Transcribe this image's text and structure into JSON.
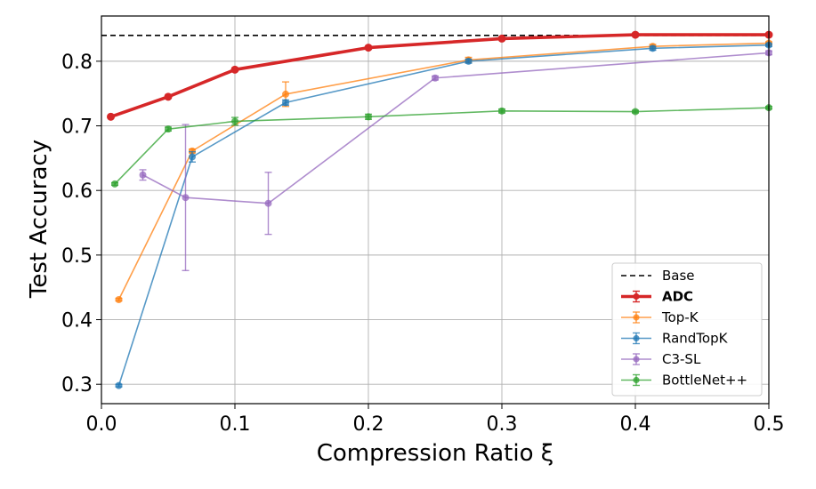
{
  "chart_data": {
    "type": "line",
    "title": "",
    "xlabel": "Compression Ratio ξ",
    "ylabel": "Test Accuracy",
    "xlim": [
      0.0,
      0.5
    ],
    "ylim": [
      0.27,
      0.87
    ],
    "xticks": [
      0.0,
      0.1,
      0.2,
      0.3,
      0.4,
      0.5
    ],
    "xtick_labels": [
      "0.0",
      "0.1",
      "0.2",
      "0.3",
      "0.4",
      "0.5"
    ],
    "yticks": [
      0.3,
      0.4,
      0.5,
      0.6,
      0.7,
      0.8
    ],
    "ytick_labels": [
      "0.3",
      "0.4",
      "0.5",
      "0.6",
      "0.7",
      "0.8"
    ],
    "grid": true,
    "legend_position": "lower-right",
    "baseline": {
      "name": "Base",
      "y": 0.84,
      "color": "#000000",
      "style": "dashed"
    },
    "series": [
      {
        "name": "ADC",
        "color": "#d62728",
        "bold": true,
        "x": [
          0.007,
          0.05,
          0.1,
          0.2,
          0.3,
          0.4,
          0.5
        ],
        "y": [
          0.714,
          0.745,
          0.787,
          0.821,
          0.835,
          0.841,
          0.841
        ],
        "err": [
          0.002,
          0.002,
          0.002,
          0.002,
          0.002,
          0.002,
          0.002
        ]
      },
      {
        "name": "Top-K",
        "color": "#ff7f0e",
        "bold": false,
        "x": [
          0.013,
          0.068,
          0.138,
          0.275,
          0.413,
          0.5
        ],
        "y": [
          0.431,
          0.661,
          0.749,
          0.802,
          0.823,
          0.828
        ],
        "err": [
          0.002,
          0.003,
          0.019,
          0.004,
          0.003,
          0.002
        ]
      },
      {
        "name": "RandTopK",
        "color": "#1f77b4",
        "bold": false,
        "x": [
          0.013,
          0.068,
          0.138,
          0.275,
          0.413,
          0.5
        ],
        "y": [
          0.298,
          0.652,
          0.736,
          0.8,
          0.82,
          0.825
        ],
        "err": [
          0.002,
          0.008,
          0.004,
          0.003,
          0.003,
          0.002
        ]
      },
      {
        "name": "C3-SL",
        "color": "#9467bd",
        "bold": false,
        "x": [
          0.031,
          0.063,
          0.125,
          0.25,
          0.5
        ],
        "y": [
          0.624,
          0.589,
          0.58,
          0.774,
          0.813
        ],
        "err": [
          0.008,
          0.113,
          0.048,
          0.003,
          0.003
        ]
      },
      {
        "name": "BottleNet++",
        "color": "#2ca02c",
        "bold": false,
        "x": [
          0.01,
          0.05,
          0.1,
          0.2,
          0.3,
          0.4,
          0.5
        ],
        "y": [
          0.61,
          0.695,
          0.707,
          0.714,
          0.723,
          0.722,
          0.728
        ],
        "err": [
          0.002,
          0.003,
          0.006,
          0.004,
          0.003,
          0.002,
          0.002
        ]
      }
    ]
  }
}
